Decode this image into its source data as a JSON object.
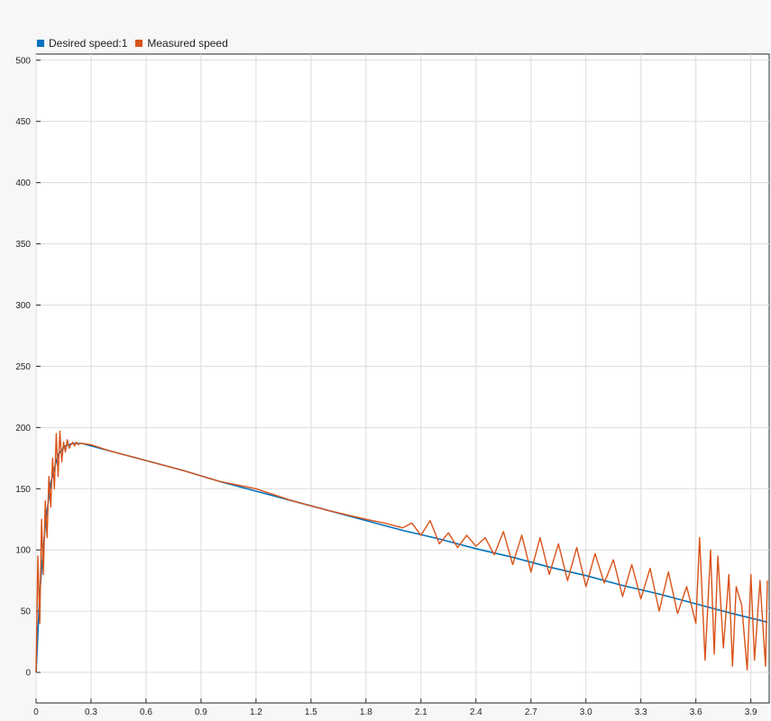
{
  "chart_data": {
    "type": "line",
    "title": "",
    "xlabel": "",
    "ylabel": "",
    "xlim": [
      0,
      4.0
    ],
    "ylim": [
      -25,
      505
    ],
    "xticks": [
      0,
      0.3,
      0.6,
      0.9,
      1.2,
      1.5,
      1.8,
      2.1,
      2.4,
      2.7,
      3.0,
      3.3,
      3.6,
      3.9
    ],
    "xtick_labels": [
      "0",
      "0.3",
      "0.6",
      "0.9",
      "1.2",
      "1.5",
      "1.8",
      "2.1",
      "2.4",
      "2.7",
      "3.0",
      "3.3",
      "3.6",
      "3.9"
    ],
    "yticks": [
      0,
      50,
      100,
      150,
      200,
      250,
      300,
      350,
      400,
      450,
      500
    ],
    "ytick_labels": [
      "0",
      "50",
      "100",
      "150",
      "200",
      "250",
      "300",
      "350",
      "400",
      "450",
      "500"
    ],
    "grid": true,
    "legend": "top-left",
    "series": [
      {
        "name": "Desired speed:1",
        "color": "#0072BD",
        "x": [
          0,
          0.02,
          0.05,
          0.08,
          0.12,
          0.16,
          0.2,
          0.25,
          0.3,
          0.4,
          0.5,
          0.6,
          0.8,
          1.0,
          1.2,
          1.4,
          1.6,
          1.8,
          2.0,
          2.2,
          2.4,
          2.6,
          2.8,
          3.0,
          3.2,
          3.4,
          3.6,
          3.8,
          3.99
        ],
        "y": [
          0,
          65,
          120,
          155,
          178,
          185,
          187,
          187,
          185,
          181,
          177,
          173,
          165,
          156,
          148,
          140,
          132,
          124,
          116,
          109,
          101,
          94,
          86,
          79,
          71,
          64,
          56,
          48,
          41
        ]
      },
      {
        "name": "Measured speed",
        "color": "#D95319",
        "x": [
          0,
          0.01,
          0.02,
          0.03,
          0.04,
          0.05,
          0.06,
          0.07,
          0.08,
          0.09,
          0.1,
          0.11,
          0.12,
          0.13,
          0.14,
          0.15,
          0.16,
          0.17,
          0.18,
          0.19,
          0.2,
          0.21,
          0.22,
          0.23,
          0.24,
          0.25,
          0.3,
          0.4,
          0.5,
          0.6,
          0.8,
          1.0,
          1.2,
          1.3,
          1.4,
          1.6,
          1.8,
          1.9,
          2.0,
          2.05,
          2.1,
          2.15,
          2.2,
          2.25,
          2.3,
          2.35,
          2.4,
          2.45,
          2.5,
          2.55,
          2.6,
          2.65,
          2.7,
          2.75,
          2.8,
          2.85,
          2.9,
          2.95,
          3.0,
          3.05,
          3.1,
          3.15,
          3.2,
          3.25,
          3.3,
          3.35,
          3.4,
          3.45,
          3.5,
          3.55,
          3.6,
          3.62,
          3.65,
          3.68,
          3.7,
          3.72,
          3.75,
          3.78,
          3.8,
          3.82,
          3.85,
          3.88,
          3.9,
          3.92,
          3.95,
          3.98,
          3.99
        ],
        "y": [
          0,
          95,
          40,
          125,
          80,
          140,
          110,
          160,
          135,
          175,
          150,
          195,
          160,
          197,
          172,
          188,
          180,
          190,
          183,
          186,
          188,
          185,
          188,
          186,
          187,
          187,
          186,
          181,
          177,
          173,
          165,
          156,
          150,
          145,
          140,
          132,
          125,
          122,
          118,
          122,
          112,
          124,
          105,
          114,
          102,
          112,
          103,
          110,
          96,
          115,
          88,
          112,
          82,
          110,
          80,
          105,
          75,
          102,
          70,
          97,
          73,
          92,
          62,
          88,
          60,
          85,
          50,
          82,
          48,
          70,
          40,
          110,
          10,
          100,
          15,
          95,
          20,
          80,
          5,
          70,
          55,
          2,
          80,
          10,
          75,
          5,
          75
        ]
      }
    ]
  }
}
